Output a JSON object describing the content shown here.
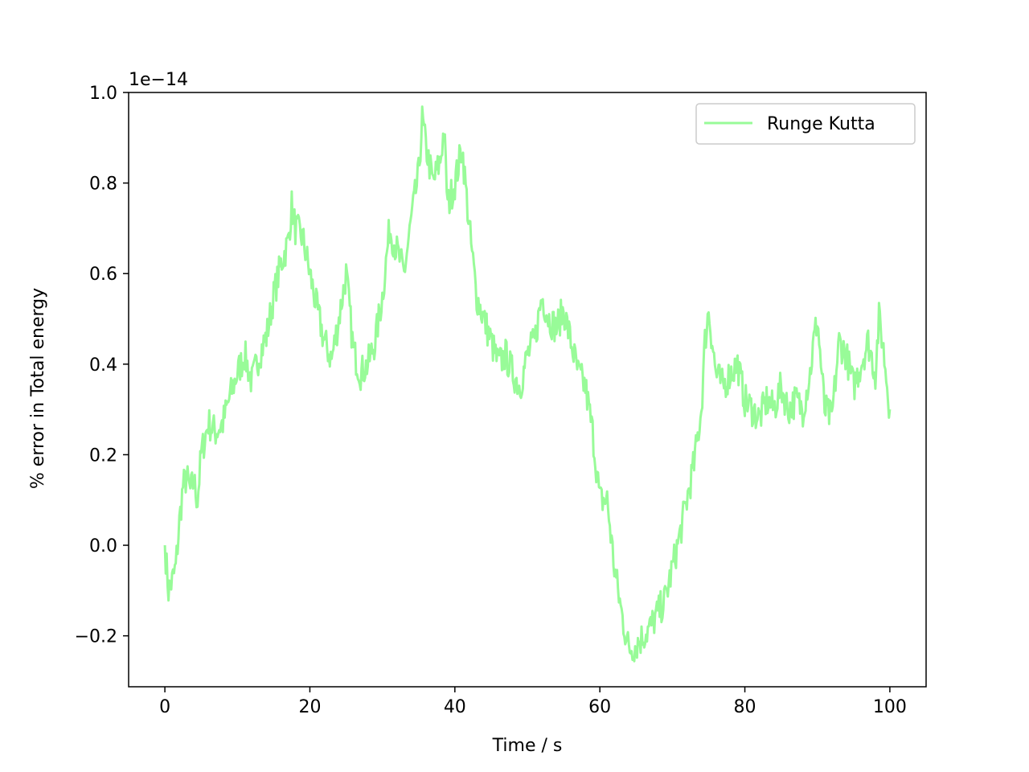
{
  "chart_data": {
    "type": "line",
    "title": "",
    "xlabel": "Time / s",
    "ylabel": "% error in Total energy",
    "offset_text": "1e−14",
    "xlim": [
      -5,
      105
    ],
    "ylim": [
      -0.3125,
      1.0
    ],
    "x_ticks": [
      0,
      20,
      40,
      60,
      80,
      100
    ],
    "x_tick_labels": [
      "0",
      "20",
      "40",
      "60",
      "80",
      "100"
    ],
    "y_ticks": [
      -0.2,
      0.0,
      0.2,
      0.4,
      0.6,
      0.8,
      1.0
    ],
    "y_tick_labels": [
      "−0.2",
      "0.0",
      "0.2",
      "0.4",
      "0.6",
      "0.8",
      "1.0"
    ],
    "grid": false,
    "legend": {
      "position": "top-right",
      "entries": [
        "Runge Kutta"
      ]
    },
    "colors": {
      "series": "#98fb98",
      "axes": "#000000",
      "legend_border": "#cccccc"
    },
    "series": [
      {
        "name": "Runge Kutta",
        "x": [
          0,
          0.5,
          1,
          1.5,
          2,
          2.5,
          3,
          3.5,
          4,
          4.5,
          5,
          6,
          7,
          8,
          9,
          10,
          11,
          12,
          13,
          14,
          15,
          16,
          17,
          17.5,
          18,
          19,
          20,
          21,
          22,
          23,
          24,
          25,
          26,
          27,
          28,
          29,
          30,
          31,
          32,
          33,
          34,
          35,
          35.5,
          36,
          37,
          38,
          38.5,
          39,
          40,
          41,
          42,
          43,
          44,
          45,
          46,
          47,
          48,
          49,
          50,
          51,
          52,
          53,
          54,
          55,
          56,
          57,
          58,
          59,
          60,
          61,
          62,
          63,
          64,
          65,
          66,
          67,
          68,
          69,
          70,
          71,
          72,
          73,
          74,
          74.5,
          75,
          76,
          77,
          78,
          79,
          80,
          81,
          82,
          83,
          84,
          85,
          86,
          87,
          88,
          89,
          89.5,
          90,
          91,
          92,
          93,
          94,
          95,
          96,
          97,
          98,
          98.5,
          99,
          100
        ],
        "y": [
          0.0,
          -0.1,
          -0.08,
          -0.05,
          0.05,
          0.13,
          0.15,
          0.12,
          0.14,
          0.1,
          0.2,
          0.27,
          0.25,
          0.27,
          0.33,
          0.38,
          0.42,
          0.36,
          0.42,
          0.46,
          0.55,
          0.62,
          0.67,
          0.75,
          0.7,
          0.68,
          0.6,
          0.52,
          0.45,
          0.41,
          0.5,
          0.6,
          0.43,
          0.38,
          0.4,
          0.45,
          0.55,
          0.7,
          0.65,
          0.6,
          0.72,
          0.82,
          0.94,
          0.88,
          0.8,
          0.85,
          0.92,
          0.75,
          0.8,
          0.88,
          0.7,
          0.55,
          0.5,
          0.45,
          0.4,
          0.42,
          0.38,
          0.35,
          0.42,
          0.45,
          0.55,
          0.5,
          0.48,
          0.52,
          0.45,
          0.38,
          0.35,
          0.25,
          0.1,
          0.1,
          -0.05,
          -0.15,
          -0.23,
          -0.22,
          -0.2,
          -0.18,
          -0.15,
          -0.12,
          -0.05,
          0.02,
          0.1,
          0.18,
          0.3,
          0.45,
          0.52,
          0.38,
          0.35,
          0.38,
          0.4,
          0.32,
          0.3,
          0.28,
          0.32,
          0.3,
          0.35,
          0.3,
          0.32,
          0.3,
          0.38,
          0.45,
          0.5,
          0.3,
          0.28,
          0.45,
          0.42,
          0.35,
          0.4,
          0.45,
          0.38,
          0.5,
          0.45,
          0.3
        ]
      }
    ]
  }
}
